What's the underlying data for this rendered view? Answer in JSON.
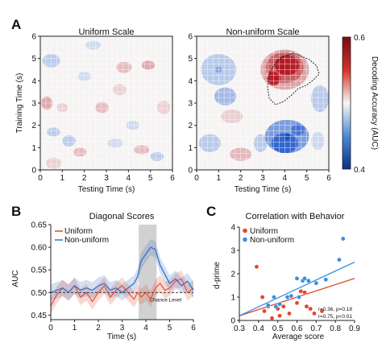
{
  "panels": {
    "a": {
      "letter": "A"
    },
    "b": {
      "letter": "B"
    },
    "c": {
      "letter": "C"
    }
  },
  "chart_data": [
    {
      "type": "heatmap",
      "title": "Uniform Scale",
      "xlabel": "Testing Time (s)",
      "ylabel": "Training Time (s)",
      "xlim": [
        0,
        6
      ],
      "ylim": [
        0,
        6
      ],
      "xticks": [
        "0",
        "1",
        "2",
        "3",
        "4",
        "5",
        "6"
      ],
      "yticks": [
        "0",
        "1",
        "2",
        "3",
        "4",
        "5",
        "6"
      ],
      "grid": true,
      "value_range": [
        0.4,
        0.6
      ],
      "note": "mostly near-chance values with weak red and blue patches"
    },
    {
      "type": "heatmap",
      "title": "Non-uniform Scale",
      "xlabel": "Testing Time (s)",
      "ylabel": "",
      "xlim": [
        0,
        6
      ],
      "ylim": [
        0,
        6
      ],
      "xticks": [
        "0",
        "1",
        "2",
        "3",
        "4",
        "5",
        "6"
      ],
      "yticks": [
        "0",
        "1",
        "2",
        "3",
        "4",
        "5",
        "6"
      ],
      "grid": true,
      "value_range": [
        0.4,
        0.6
      ],
      "hotspots": [
        {
          "x": 4.0,
          "y": 4.6,
          "value": 0.6
        },
        {
          "x": 4.1,
          "y": 1.5,
          "value": 0.4
        },
        {
          "x": 1.0,
          "y": 4.5,
          "value": 0.45
        }
      ],
      "colorbar": {
        "label": "Decoding Accuracy (AUC)",
        "min": 0.4,
        "max": 0.6,
        "tick_labels": [
          "0.6",
          "0.4"
        ]
      }
    },
    {
      "type": "line",
      "title": "Diagonal Scores",
      "xlabel": "Time (s)",
      "ylabel": "AUC",
      "xlim": [
        0,
        6
      ],
      "ylim": [
        0.44,
        0.65
      ],
      "xticks": [
        "0",
        "1",
        "2",
        "3",
        "4",
        "5",
        "6"
      ],
      "yticks": [
        "0.45",
        "0.50",
        "0.55",
        "0.60",
        "0.65"
      ],
      "legend": "top-left",
      "chance_level": 0.5,
      "chance_label": "Chance Level",
      "highlight_window": [
        3.7,
        4.45
      ],
      "x": [
        0,
        0.25,
        0.5,
        0.75,
        1.0,
        1.25,
        1.5,
        1.75,
        2.0,
        2.25,
        2.5,
        2.75,
        3.0,
        3.25,
        3.5,
        3.65,
        3.8,
        4.0,
        4.2,
        4.4,
        4.6,
        4.8,
        5.0,
        5.25,
        5.5,
        5.75,
        6.0
      ],
      "series": [
        {
          "name": "Uniform",
          "color": "#e0492f",
          "values": [
            0.47,
            0.495,
            0.51,
            0.5,
            0.515,
            0.49,
            0.5,
            0.48,
            0.5,
            0.515,
            0.49,
            0.505,
            0.515,
            0.5,
            0.485,
            0.5,
            0.49,
            0.5,
            0.485,
            0.51,
            0.52,
            0.505,
            0.51,
            0.525,
            0.53,
            0.5,
            0.51
          ]
        },
        {
          "name": "Non-uniform",
          "color": "#3a6fc4",
          "values": [
            0.5,
            0.505,
            0.51,
            0.5,
            0.515,
            0.505,
            0.51,
            0.505,
            0.515,
            0.52,
            0.505,
            0.51,
            0.5,
            0.51,
            0.52,
            0.535,
            0.57,
            0.585,
            0.6,
            0.595,
            0.56,
            0.54,
            0.52,
            0.53,
            0.515,
            0.525,
            0.505
          ]
        }
      ]
    },
    {
      "type": "scatter",
      "title": "Correlation with Behavior",
      "xlabel": "Average score",
      "ylabel": "d-prime",
      "xlim": [
        0.3,
        0.9
      ],
      "ylim": [
        0,
        4
      ],
      "xticks": [
        "0.3",
        "0.4",
        "0.5",
        "0.6",
        "0.7",
        "0.8",
        "0.9"
      ],
      "yticks": [
        "0",
        "1",
        "2",
        "3",
        "4"
      ],
      "legend": "top-left",
      "series": [
        {
          "name": "Uniform",
          "color": "#e0492f",
          "stats": "r=0.36, p=0.18",
          "fit": [
            [
              0.3,
              0.2
            ],
            [
              0.9,
              1.8
            ]
          ],
          "points": [
            [
              0.39,
              2.3
            ],
            [
              0.42,
              1.0
            ],
            [
              0.43,
              0.4
            ],
            [
              0.45,
              0.6
            ],
            [
              0.47,
              0.1
            ],
            [
              0.5,
              0.5
            ],
            [
              0.51,
              0.2
            ],
            [
              0.53,
              0.6
            ],
            [
              0.55,
              1.0
            ],
            [
              0.56,
              0.3
            ],
            [
              0.6,
              0.75
            ],
            [
              0.62,
              1.25
            ],
            [
              0.64,
              1.2
            ],
            [
              0.65,
              0.6
            ],
            [
              0.67,
              0.5
            ],
            [
              0.69,
              0.3
            ],
            [
              0.73,
              0.4
            ]
          ]
        },
        {
          "name": "Non-uniform",
          "color": "#3a8fe0",
          "stats": "r=0.75, p<0.01",
          "fit": [
            [
              0.3,
              0.2
            ],
            [
              0.9,
              2.5
            ]
          ],
          "points": [
            [
              0.45,
              0.65
            ],
            [
              0.48,
              1.0
            ],
            [
              0.49,
              0.6
            ],
            [
              0.51,
              0.7
            ],
            [
              0.55,
              1.0
            ],
            [
              0.57,
              1.05
            ],
            [
              0.6,
              1.8
            ],
            [
              0.61,
              1.0
            ],
            [
              0.63,
              1.7
            ],
            [
              0.64,
              1.8
            ],
            [
              0.66,
              1.7
            ],
            [
              0.7,
              1.6
            ],
            [
              0.75,
              1.75
            ],
            [
              0.82,
              2.6
            ],
            [
              0.84,
              3.5
            ]
          ]
        }
      ]
    }
  ]
}
